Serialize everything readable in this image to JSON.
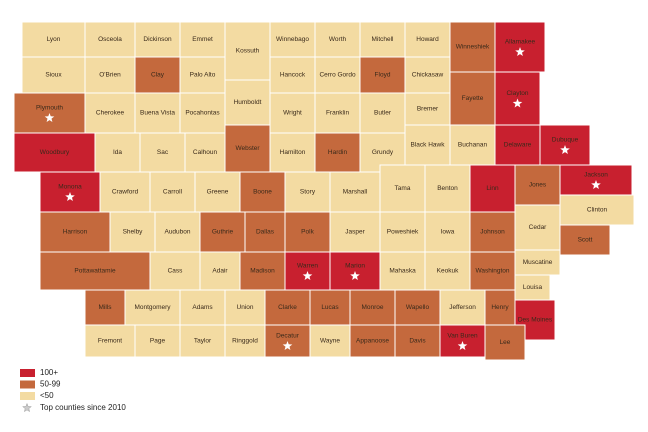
{
  "map": {
    "counties": [
      {
        "name": "Lyon",
        "color": "#f3dba2"
      },
      {
        "name": "Osceola",
        "color": "#f3dba2"
      },
      {
        "name": "Dickinson",
        "color": "#f3dba2"
      },
      {
        "name": "Emmet",
        "color": "#f3dba2"
      },
      {
        "name": "Kossuth",
        "color": "#f3dba2"
      },
      {
        "name": "Winnebago",
        "color": "#f3dba2"
      },
      {
        "name": "Worth",
        "color": "#f3dba2"
      },
      {
        "name": "Mitchell",
        "color": "#f3dba2"
      },
      {
        "name": "Howard",
        "color": "#f3dba2"
      },
      {
        "name": "Winneshiek",
        "color": "#c4693d"
      },
      {
        "name": "Allamakee",
        "color": "#c8202f",
        "star": true
      },
      {
        "name": "Sioux",
        "color": "#f3dba2"
      },
      {
        "name": "O'Brien",
        "color": "#f3dba2"
      },
      {
        "name": "Clay",
        "color": "#c4693d"
      },
      {
        "name": "Palo Alto",
        "color": "#f3dba2"
      },
      {
        "name": "Hancock",
        "color": "#f3dba2"
      },
      {
        "name": "Cerro Gordo",
        "color": "#f3dba2"
      },
      {
        "name": "Floyd",
        "color": "#c4693d"
      },
      {
        "name": "Chickasaw",
        "color": "#f3dba2"
      },
      {
        "name": "Fayette",
        "color": "#c4693d"
      },
      {
        "name": "Clayton",
        "color": "#c8202f",
        "star": true
      },
      {
        "name": "Plymouth",
        "color": "#c4693d",
        "star": true
      },
      {
        "name": "Cherokee",
        "color": "#f3dba2"
      },
      {
        "name": "Buena Vista",
        "color": "#f3dba2"
      },
      {
        "name": "Pocahontas",
        "color": "#f3dba2"
      },
      {
        "name": "Humboldt",
        "color": "#f3dba2"
      },
      {
        "name": "Wright",
        "color": "#f3dba2"
      },
      {
        "name": "Franklin",
        "color": "#f3dba2"
      },
      {
        "name": "Butler",
        "color": "#f3dba2"
      },
      {
        "name": "Bremer",
        "color": "#f3dba2"
      },
      {
        "name": "Woodbury",
        "color": "#c8202f"
      },
      {
        "name": "Ida",
        "color": "#f3dba2"
      },
      {
        "name": "Sac",
        "color": "#f3dba2"
      },
      {
        "name": "Calhoun",
        "color": "#f3dba2"
      },
      {
        "name": "Webster",
        "color": "#c4693d"
      },
      {
        "name": "Hamilton",
        "color": "#f3dba2"
      },
      {
        "name": "Hardin",
        "color": "#c4693d"
      },
      {
        "name": "Grundy",
        "color": "#f3dba2"
      },
      {
        "name": "Black Hawk",
        "color": "#f3dba2"
      },
      {
        "name": "Buchanan",
        "color": "#f3dba2"
      },
      {
        "name": "Delaware",
        "color": "#c8202f"
      },
      {
        "name": "Dubuque",
        "color": "#c8202f",
        "star": true
      },
      {
        "name": "Monona",
        "color": "#c8202f",
        "star": true
      },
      {
        "name": "Crawford",
        "color": "#f3dba2"
      },
      {
        "name": "Carroll",
        "color": "#f3dba2"
      },
      {
        "name": "Greene",
        "color": "#f3dba2"
      },
      {
        "name": "Boone",
        "color": "#c4693d"
      },
      {
        "name": "Story",
        "color": "#f3dba2"
      },
      {
        "name": "Marshall",
        "color": "#f3dba2"
      },
      {
        "name": "Tama",
        "color": "#f3dba2"
      },
      {
        "name": "Benton",
        "color": "#f3dba2"
      },
      {
        "name": "Linn",
        "color": "#c8202f"
      },
      {
        "name": "Jones",
        "color": "#c4693d"
      },
      {
        "name": "Jackson",
        "color": "#c8202f",
        "star": true
      },
      {
        "name": "Clinton",
        "color": "#f3dba2"
      },
      {
        "name": "Harrison",
        "color": "#c4693d"
      },
      {
        "name": "Shelby",
        "color": "#f3dba2"
      },
      {
        "name": "Audubon",
        "color": "#f3dba2"
      },
      {
        "name": "Guthrie",
        "color": "#c4693d"
      },
      {
        "name": "Dallas",
        "color": "#c4693d"
      },
      {
        "name": "Polk",
        "color": "#c4693d"
      },
      {
        "name": "Jasper",
        "color": "#f3dba2"
      },
      {
        "name": "Poweshiek",
        "color": "#f3dba2"
      },
      {
        "name": "Iowa",
        "color": "#f3dba2"
      },
      {
        "name": "Johnson",
        "color": "#c4693d"
      },
      {
        "name": "Cedar",
        "color": "#f3dba2"
      },
      {
        "name": "Scott",
        "color": "#c4693d"
      },
      {
        "name": "Pottawattamie",
        "color": "#c4693d"
      },
      {
        "name": "Cass",
        "color": "#f3dba2"
      },
      {
        "name": "Adair",
        "color": "#f3dba2"
      },
      {
        "name": "Madison",
        "color": "#c4693d"
      },
      {
        "name": "Warren",
        "color": "#c8202f",
        "star": true
      },
      {
        "name": "Marion",
        "color": "#c8202f",
        "star": true
      },
      {
        "name": "Mahaska",
        "color": "#f3dba2"
      },
      {
        "name": "Keokuk",
        "color": "#f3dba2"
      },
      {
        "name": "Washington",
        "color": "#c4693d"
      },
      {
        "name": "Muscatine",
        "color": "#f3dba2"
      },
      {
        "name": "Louisa",
        "color": "#f3dba2"
      },
      {
        "name": "Mills",
        "color": "#c4693d"
      },
      {
        "name": "Montgomery",
        "color": "#f3dba2"
      },
      {
        "name": "Adams",
        "color": "#f3dba2"
      },
      {
        "name": "Union",
        "color": "#f3dba2"
      },
      {
        "name": "Clarke",
        "color": "#c4693d"
      },
      {
        "name": "Lucas",
        "color": "#c4693d"
      },
      {
        "name": "Monroe",
        "color": "#c4693d"
      },
      {
        "name": "Wapello",
        "color": "#c4693d"
      },
      {
        "name": "Jefferson",
        "color": "#f3dba2"
      },
      {
        "name": "Henry",
        "color": "#c4693d"
      },
      {
        "name": "Des Moines",
        "color": "#c8202f"
      },
      {
        "name": "Fremont",
        "color": "#f3dba2"
      },
      {
        "name": "Page",
        "color": "#f3dba2"
      },
      {
        "name": "Taylor",
        "color": "#f3dba2"
      },
      {
        "name": "Ringgold",
        "color": "#f3dba2"
      },
      {
        "name": "Decatur",
        "color": "#c4693d",
        "star": true
      },
      {
        "name": "Wayne",
        "color": "#f3dba2"
      },
      {
        "name": "Appanoose",
        "color": "#c4693d"
      },
      {
        "name": "Davis",
        "color": "#c4693d"
      },
      {
        "name": "Van Buren",
        "color": "#c8202f",
        "star": true
      },
      {
        "name": "Lee",
        "color": "#c4693d"
      }
    ],
    "legend": [
      {
        "label": "100+",
        "color": "#c8202f"
      },
      {
        "label": "50-99",
        "color": "#c4693d"
      },
      {
        "label": "<50",
        "color": "#f3dba2"
      }
    ],
    "star_legend": {
      "label": "Top counties since 2010"
    }
  }
}
